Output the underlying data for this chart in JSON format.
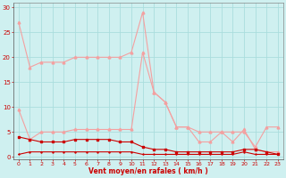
{
  "x": [
    0,
    1,
    2,
    3,
    4,
    5,
    6,
    7,
    8,
    9,
    10,
    11,
    12,
    13,
    14,
    15,
    16,
    17,
    18,
    19,
    20,
    21,
    22,
    23
  ],
  "line_pink_high": [
    27,
    18,
    19,
    19,
    19,
    20,
    20,
    20,
    20,
    20,
    21,
    29,
    13,
    11,
    6,
    6,
    5,
    5,
    5,
    5,
    5,
    2,
    6,
    6
  ],
  "line_pink_low": [
    9.5,
    3.5,
    5,
    5,
    5,
    5.5,
    5.5,
    5.5,
    5.5,
    5.5,
    5.5,
    21,
    13,
    11,
    6,
    6,
    3,
    3,
    5,
    3,
    5.5,
    1.5,
    1,
    1
  ],
  "line_dark_high": [
    4,
    3.5,
    3,
    3,
    3,
    3.5,
    3.5,
    3.5,
    3.5,
    3,
    3,
    2,
    1.5,
    1.5,
    1,
    1,
    1,
    1,
    1,
    1,
    1.5,
    1.5,
    1,
    0.5
  ],
  "line_dark_low": [
    0.5,
    1,
    1,
    1,
    1,
    1,
    1,
    1,
    1,
    1,
    1,
    0.5,
    0.5,
    0.5,
    0.5,
    0.5,
    0.5,
    0.5,
    0.5,
    0.5,
    1,
    0.5,
    0.5,
    0.5
  ],
  "color_light": "#f4a0a0",
  "color_dark": "#cc0000",
  "background": "#cff0f0",
  "grid_color": "#aadddd",
  "xlabel": "Vent moyen/en rafales ( km/h )",
  "yticks": [
    0,
    5,
    10,
    15,
    20,
    25,
    30
  ],
  "xticks": [
    0,
    1,
    2,
    3,
    4,
    5,
    6,
    7,
    8,
    9,
    10,
    11,
    12,
    13,
    14,
    15,
    16,
    17,
    18,
    19,
    20,
    21,
    22,
    23
  ],
  "ylim": [
    -0.5,
    31
  ],
  "xlim": [
    -0.5,
    23.5
  ]
}
